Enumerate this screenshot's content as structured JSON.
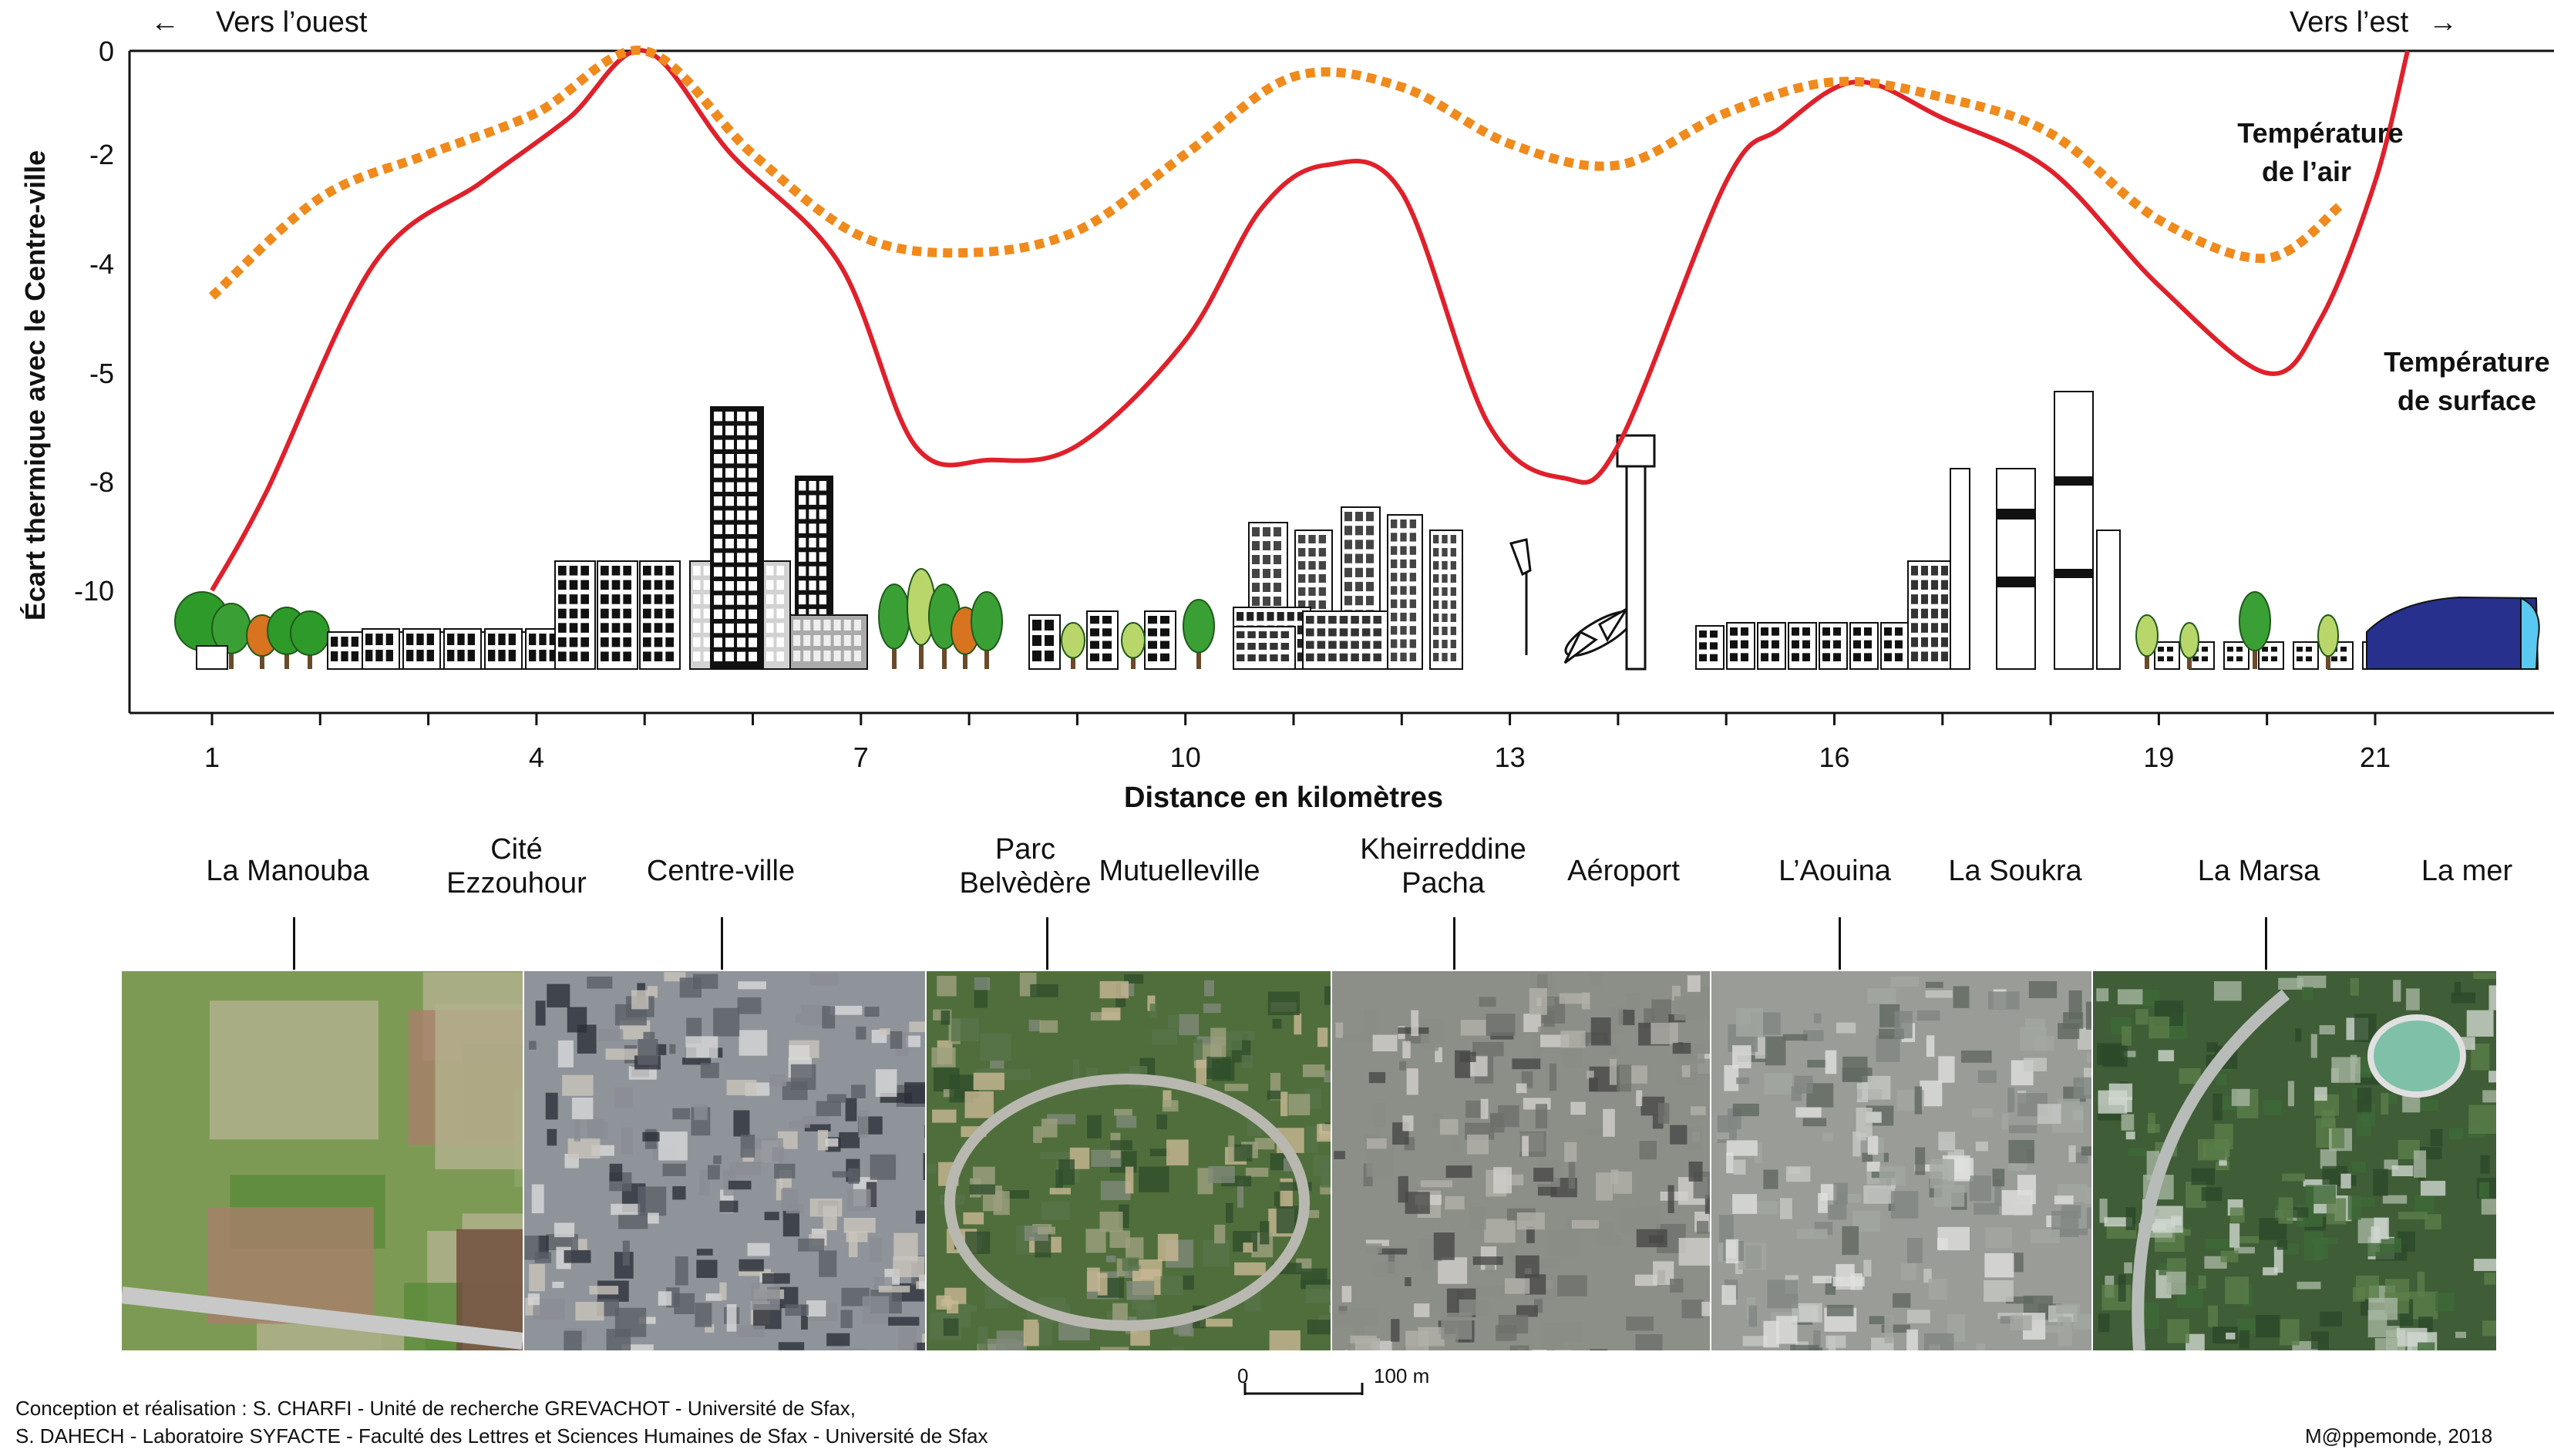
{
  "header": {
    "west_label": "Vers l’ouest",
    "east_label": "Vers l’est"
  },
  "chart_data": {
    "type": "line",
    "xlabel": "Distance en kilomètres",
    "ylabel": "Écart thermique avec le Centre-ville",
    "x_ticks": [
      1,
      4,
      7,
      10,
      13,
      16,
      19,
      21
    ],
    "y_ticks": [
      0,
      -2,
      -4,
      -5,
      -8,
      -10
    ],
    "y_axis_note": "tick labels are not evenly spaced numerically; values below are the tick values as printed",
    "series": [
      {
        "name": "Température de surface",
        "color": "#e0202a",
        "style": "solid",
        "x": [
          1.0,
          1.5,
          2.5,
          3.5,
          4.3,
          5.0,
          5.8,
          6.8,
          7.5,
          8.2,
          9.0,
          10.0,
          10.7,
          11.3,
          12.0,
          12.8,
          13.5,
          14.0,
          15.0,
          15.5,
          16.2,
          17.0,
          18.0,
          19.0,
          20.0,
          20.5,
          21.0,
          21.3
        ],
        "y": [
          -10.0,
          -8.2,
          -4.0,
          -2.5,
          -1.3,
          0.0,
          -2.0,
          -4.0,
          -7.0,
          -7.4,
          -7.0,
          -4.7,
          -3.0,
          -2.2,
          -2.7,
          -6.4,
          -7.9,
          -7.0,
          -2.5,
          -1.5,
          -0.6,
          -1.3,
          -2.3,
          -4.2,
          -5.0,
          -4.5,
          -2.5,
          0.0
        ]
      },
      {
        "name": "Température de l’air",
        "color": "#f08a1c",
        "style": "dotted",
        "x": [
          1.0,
          2.0,
          3.0,
          4.0,
          5.0,
          6.0,
          7.0,
          8.0,
          9.0,
          10.0,
          11.0,
          12.0,
          13.0,
          14.0,
          15.0,
          16.0,
          17.0,
          18.0,
          19.0,
          20.0,
          20.7
        ],
        "y": [
          -4.3,
          -2.8,
          -2.0,
          -1.2,
          0.0,
          -2.0,
          -3.5,
          -3.8,
          -3.4,
          -2.0,
          -0.5,
          -0.7,
          -1.8,
          -2.2,
          -1.2,
          -0.6,
          -0.9,
          -1.6,
          -3.2,
          -3.9,
          -2.9
        ]
      }
    ],
    "legend": {
      "air": [
        "Température",
        "de l’air"
      ],
      "surface": [
        "Température",
        "de surface"
      ]
    }
  },
  "locations": [
    [
      "La Manouba"
    ],
    [
      "Cité",
      "Ezzouhour"
    ],
    [
      "Centre-ville"
    ],
    [
      "Parc",
      "Belvèdère"
    ],
    [
      "Mutuelleville"
    ],
    [
      "Kheirreddine",
      "Pacha"
    ],
    [
      "Aéroport"
    ],
    [
      "L’Aouina"
    ],
    [
      "La Soukra"
    ],
    [
      "La Marsa"
    ],
    [
      "La mer"
    ]
  ],
  "photos": [
    {
      "name": "farmland",
      "color": "#7d9a55"
    },
    {
      "name": "dense-city",
      "color": "#8f949a"
    },
    {
      "name": "park",
      "color": "#4f6e3c"
    },
    {
      "name": "mutuelleville",
      "color": "#8c8e88"
    },
    {
      "name": "aouina",
      "color": "#9a9c98"
    },
    {
      "name": "marsa",
      "color": "#3f5d36"
    }
  ],
  "scale_bar": {
    "start": "0",
    "end": "100 m"
  },
  "credits": {
    "line1": "Conception et réalisation : S. CHARFI -  Unité de recherche GREVACHOT - Université de Sfax,",
    "line2": "S. DAHECH - Laboratoire SYFACTE - Faculté des Lettres et Sciences Humaines de Sfax - Université de Sfax",
    "mappemonde": "M@ppemonde, 2018"
  },
  "colors": {
    "surface": "#e0202a",
    "air": "#f08a1c",
    "sea": "#27308c",
    "tree": "#3a9a32"
  }
}
